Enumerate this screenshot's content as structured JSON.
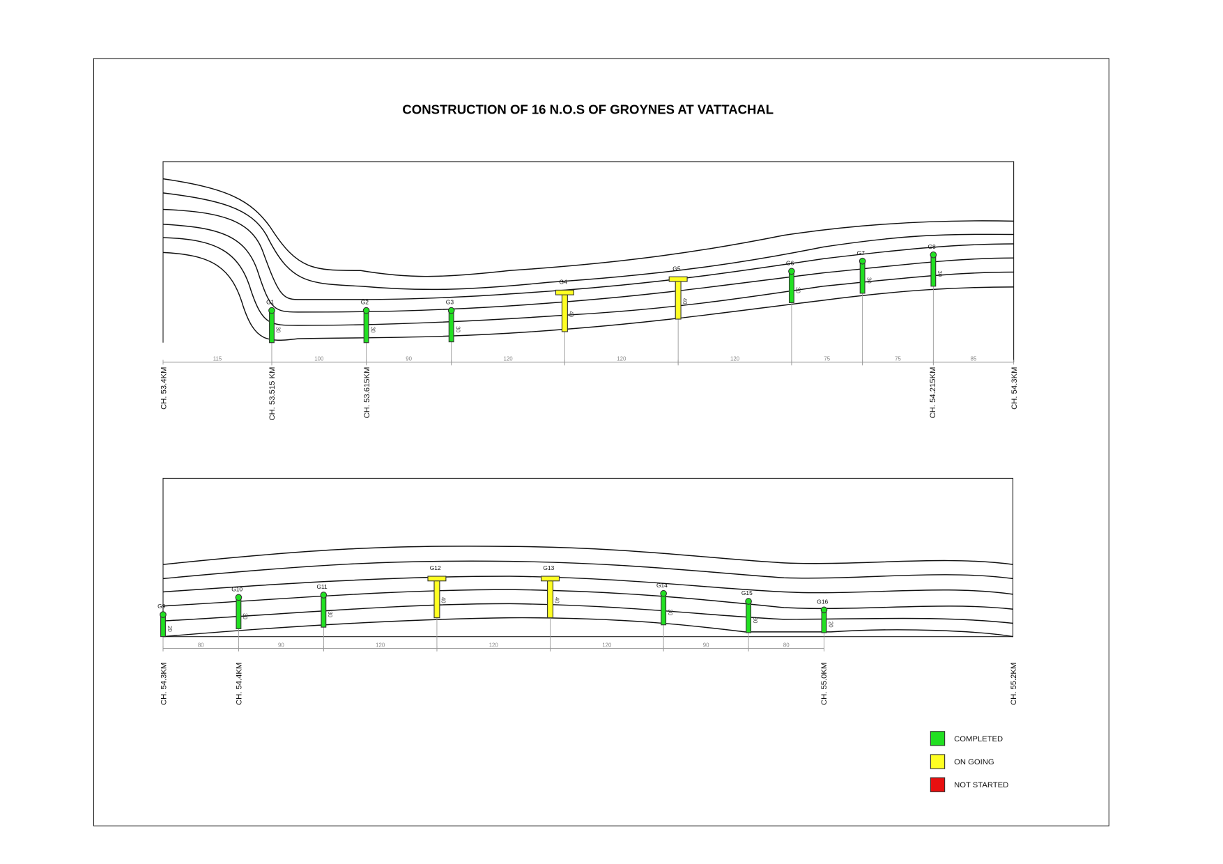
{
  "title": "CONSTRUCTION OF 16 N.O.S OF GROYNES AT  VATTACHAL",
  "panels": [
    {
      "groynes": [
        {
          "label": "G1",
          "length": 30,
          "status": "COMPLETED"
        },
        {
          "label": "G2",
          "length": 30,
          "status": "COMPLETED"
        },
        {
          "label": "G3",
          "length": 30,
          "status": "COMPLETED"
        },
        {
          "label": "G4",
          "length": 40,
          "status": "ON GOING"
        },
        {
          "label": "G5",
          "length": 40,
          "status": "ON GOING"
        },
        {
          "label": "G6",
          "length": 30,
          "status": "COMPLETED"
        },
        {
          "label": "G7",
          "length": 30,
          "status": "COMPLETED"
        },
        {
          "label": "G8",
          "length": 30,
          "status": "COMPLETED"
        }
      ],
      "spacings": [
        115,
        100,
        90,
        120,
        120,
        120,
        75,
        75,
        85
      ],
      "chainages": [
        "CH. 53.4KM",
        "CH. 53.515 KM",
        "CH. 53.615KM",
        "CH. 54.215KM",
        "CH. 54.3KM"
      ]
    },
    {
      "groynes": [
        {
          "label": "G9",
          "length": 20,
          "status": "COMPLETED"
        },
        {
          "label": "G10",
          "length": 30,
          "status": "COMPLETED"
        },
        {
          "label": "G11",
          "length": 30,
          "status": "COMPLETED"
        },
        {
          "label": "G12",
          "length": 40,
          "status": "ON GOING"
        },
        {
          "label": "G13",
          "length": 40,
          "status": "ON GOING"
        },
        {
          "label": "G14",
          "length": 30,
          "status": "COMPLETED"
        },
        {
          "label": "G15",
          "length": 30,
          "status": "COMPLETED"
        },
        {
          "label": "G16",
          "length": 20,
          "status": "COMPLETED"
        }
      ],
      "spacings": [
        80,
        90,
        120,
        120,
        120,
        90,
        80
      ],
      "chainages": [
        "CH. 54.3KM",
        "CH. 54.4KM",
        "CH. 55.0KM",
        "CH. 55.2KM"
      ]
    }
  ],
  "legend": [
    {
      "label": "COMPLETED",
      "color": "#22e022"
    },
    {
      "label": "ON GOING",
      "color": "#ffff22"
    },
    {
      "label": "NOT STARTED",
      "color": "#e81010"
    }
  ]
}
